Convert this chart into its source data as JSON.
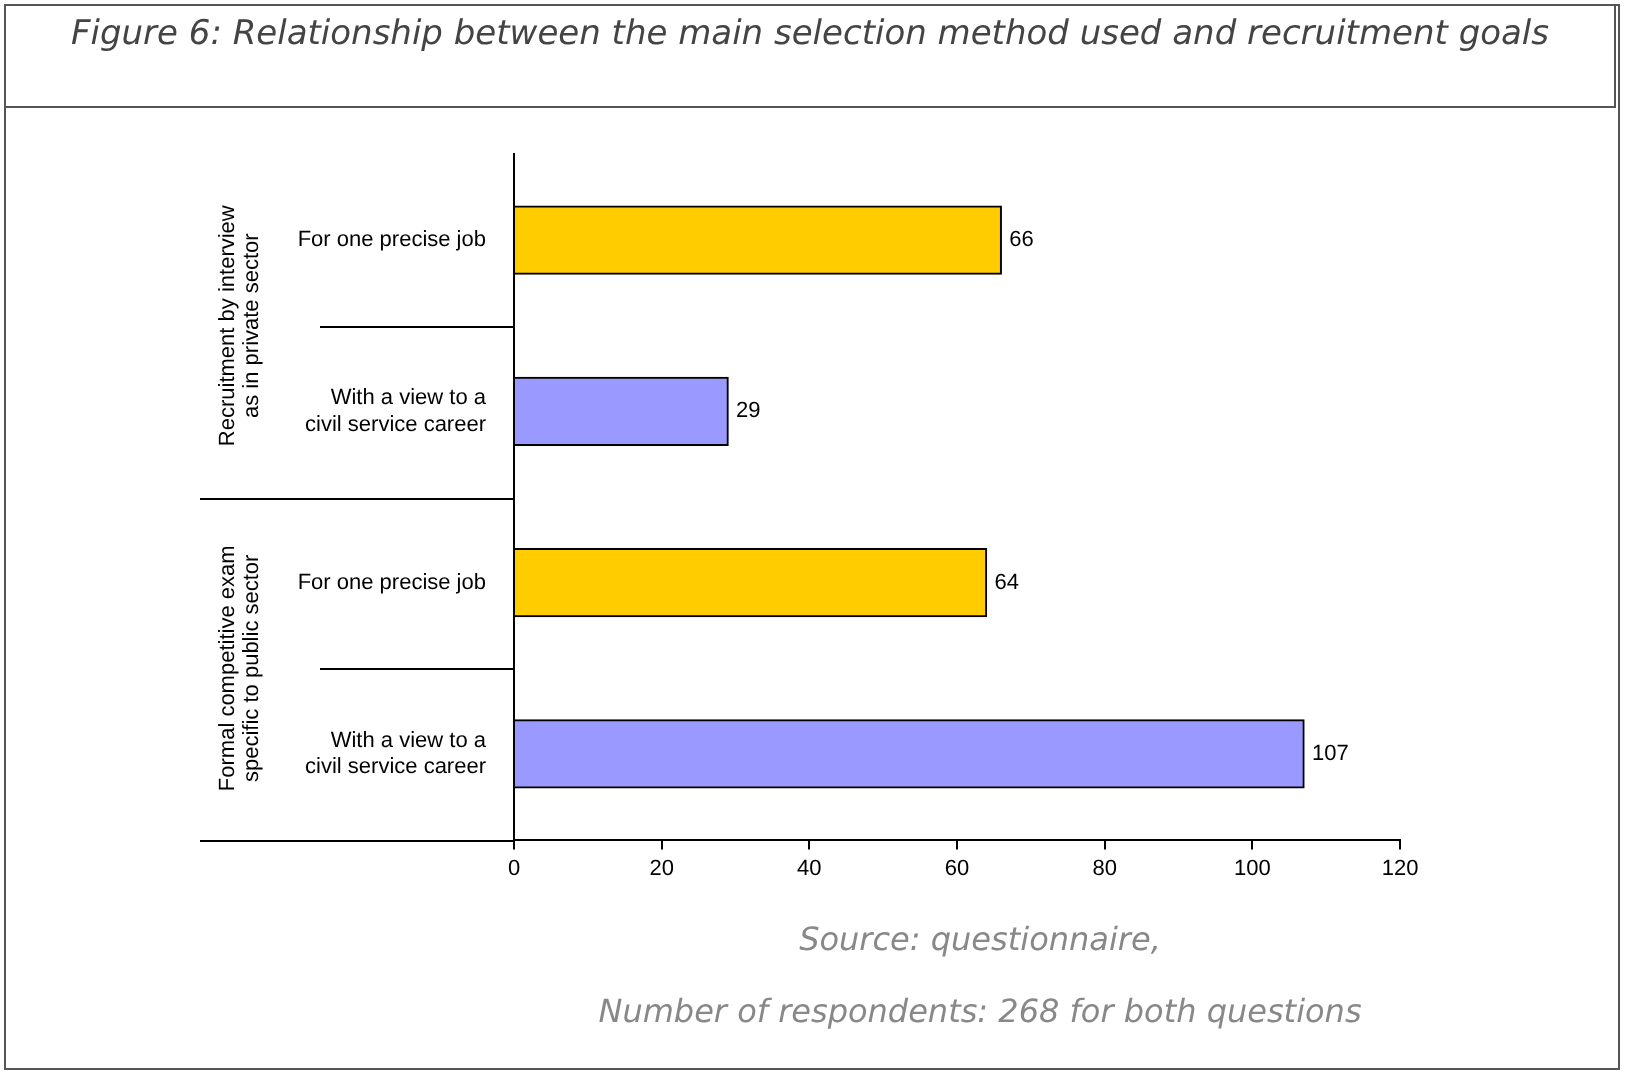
{
  "chart_data": {
    "type": "bar",
    "orientation": "horizontal",
    "title": "Figure 6: Relationship between the main selection method used and recruitment goals",
    "categories": [
      "For one precise job",
      "With a view to a civil service career",
      "For one precise job",
      "With a view to a civil service career"
    ],
    "values": [
      66,
      29,
      64,
      107
    ],
    "colors": [
      "#ffcc00",
      "#9999ff",
      "#ffcc00",
      "#9999ff"
    ],
    "xlim": [
      0,
      120
    ],
    "xticks": [
      0,
      20,
      40,
      60,
      80,
      100,
      120
    ],
    "grid": false,
    "legend": false,
    "data_labels": true,
    "annotations": [
      "Recruitment by interview as in private sector",
      "Formal competitive exam specific to public sector",
      "Source: questionnaire,",
      "Number of respondents: 268 for both questions"
    ]
  }
}
